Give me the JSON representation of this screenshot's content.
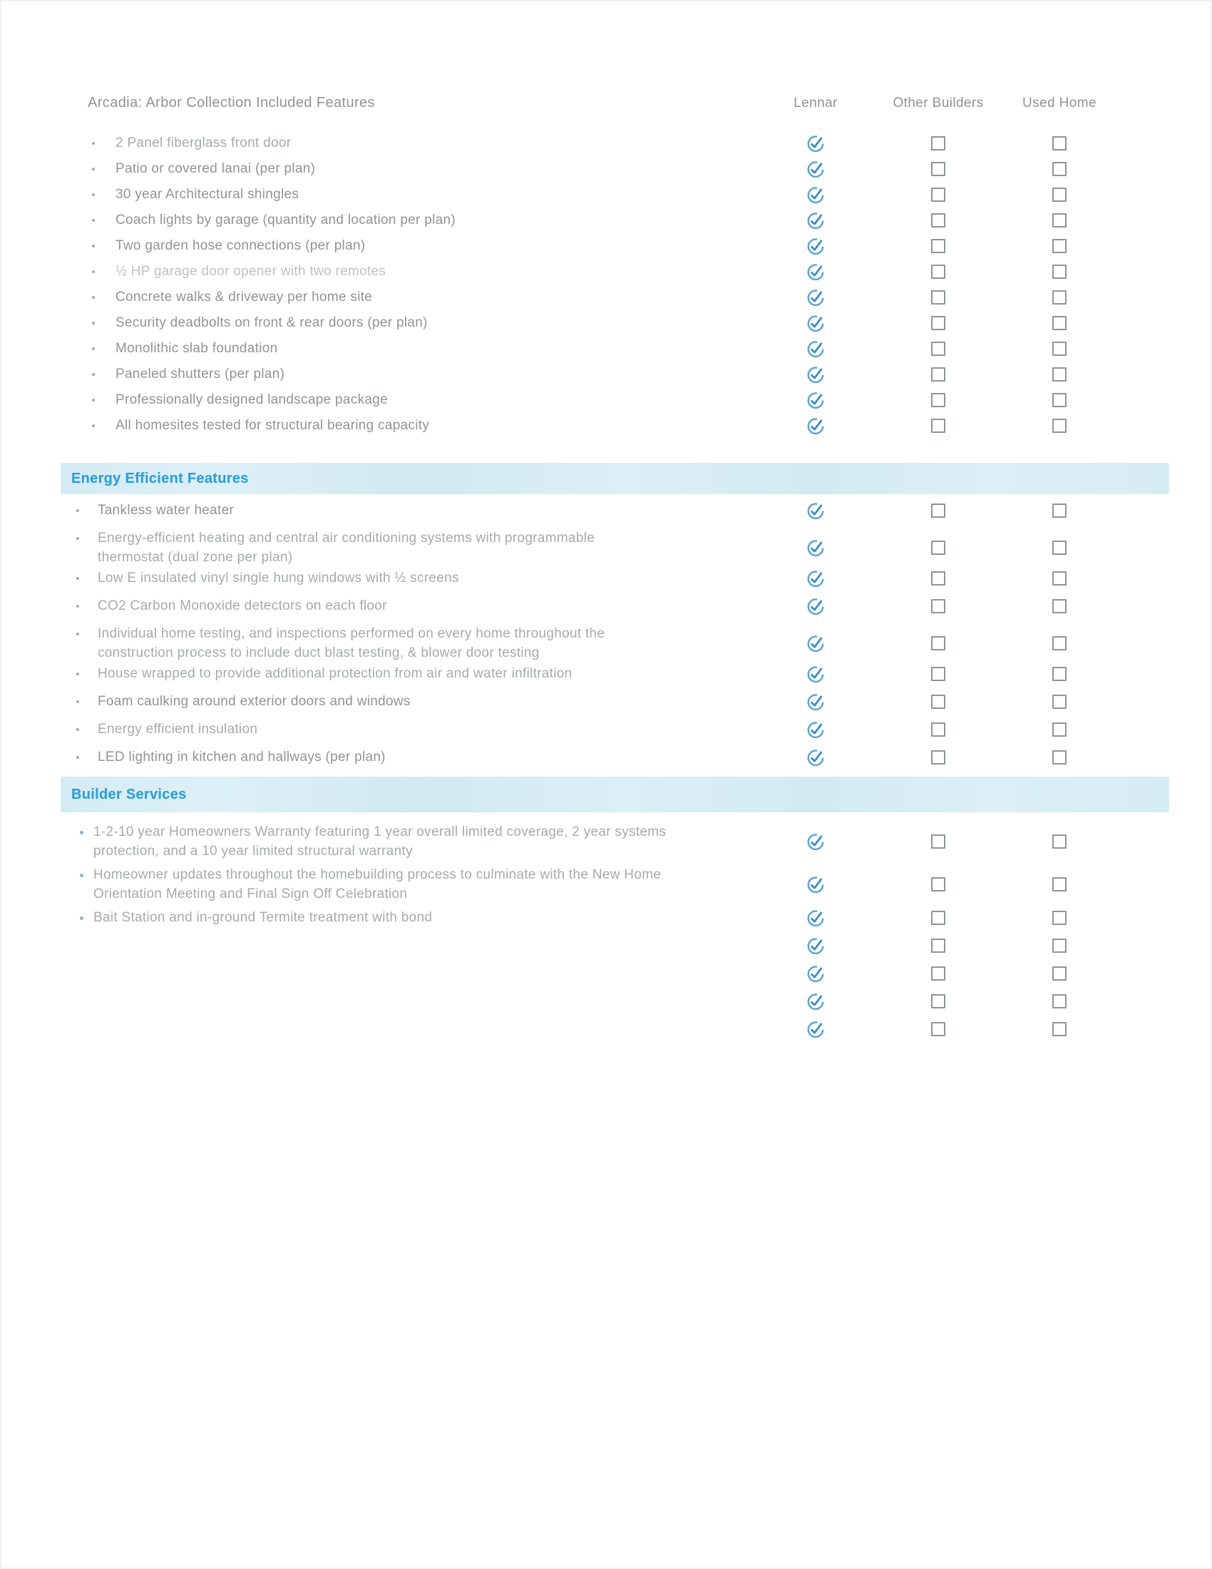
{
  "header": {
    "title": "Arcadia: Arbor Collection Included Features",
    "columns": [
      {
        "label": "Lennar"
      },
      {
        "label": "Other Builders"
      },
      {
        "label": "Used Home"
      }
    ]
  },
  "colors": {
    "accent_blue": "#2c9fd6",
    "band_background": "#d8edf5",
    "check_circle": "#5aa5d0",
    "check_mark": "#3c8ec0",
    "checkbox_border": "#8f9494",
    "text_normal": "#8f9594",
    "text_light": "#a5abaa",
    "text_faded": "#bdc2c0",
    "bullet_gray": "#a4a9a8",
    "bullet_blue": "#85b5d6"
  },
  "icons": {
    "lennar_check": "circle-check-icon",
    "empty_box": "empty-checkbox"
  },
  "sections": [
    {
      "id": "included-features",
      "title": "",
      "items": [
        {
          "text": "2 Panel fiberglass front door",
          "tone": "light",
          "lennar": true,
          "other_builders": false,
          "used_home": false
        },
        {
          "text": "Patio or covered lanai (per plan)",
          "tone": "normal",
          "lennar": true,
          "other_builders": false,
          "used_home": false
        },
        {
          "text": "30 year Architectural shingles",
          "tone": "normal",
          "lennar": true,
          "other_builders": false,
          "used_home": false
        },
        {
          "text": "Coach lights by garage (quantity and location per plan)",
          "tone": "normal",
          "lennar": true,
          "other_builders": false,
          "used_home": false
        },
        {
          "text": "Two garden hose connections (per plan)",
          "tone": "normal",
          "lennar": true,
          "other_builders": false,
          "used_home": false
        },
        {
          "text": "½ HP garage door opener with two remotes",
          "tone": "faded",
          "lennar": true,
          "other_builders": false,
          "used_home": false
        },
        {
          "text": "Concrete walks & driveway per home site",
          "tone": "normal",
          "lennar": true,
          "other_builders": false,
          "used_home": false
        },
        {
          "text": "Security deadbolts on front & rear doors (per plan)",
          "tone": "normal",
          "lennar": true,
          "other_builders": false,
          "used_home": false
        },
        {
          "text": "Monolithic slab foundation",
          "tone": "normal",
          "lennar": true,
          "other_builders": false,
          "used_home": false
        },
        {
          "text": "Paneled shutters (per plan)",
          "tone": "normal",
          "lennar": true,
          "other_builders": false,
          "used_home": false
        },
        {
          "text": "Professionally designed landscape package",
          "tone": "normal",
          "lennar": true,
          "other_builders": false,
          "used_home": false
        },
        {
          "text": "All homesites tested for structural bearing capacity",
          "tone": "normal",
          "lennar": true,
          "other_builders": false,
          "used_home": false
        }
      ]
    },
    {
      "id": "energy-efficient-features",
      "title": "Energy Efficient Features",
      "items": [
        {
          "text": "Tankless water heater",
          "tone": "normal",
          "lennar": true,
          "other_builders": false,
          "used_home": false
        },
        {
          "text": "Energy-efficient heating and central air conditioning systems with programmable\nthermostat (dual zone per plan)",
          "tone": "light",
          "lennar": true,
          "other_builders": false,
          "used_home": false
        },
        {
          "text": "Low E insulated vinyl single hung windows with ½ screens",
          "tone": "light",
          "lennar": true,
          "other_builders": false,
          "used_home": false
        },
        {
          "text": "CO2 Carbon Monoxide detectors on each floor",
          "tone": "light",
          "lennar": true,
          "other_builders": false,
          "used_home": false
        },
        {
          "text": "Individual home testing, and inspections performed on every home throughout the\nconstruction process to include duct blast testing, & blower door testing",
          "tone": "light",
          "lennar": true,
          "other_builders": false,
          "used_home": false
        },
        {
          "text": "House wrapped to provide additional protection from air and water infiltration",
          "tone": "light",
          "lennar": true,
          "other_builders": false,
          "used_home": false
        },
        {
          "text": "Foam caulking around exterior doors and windows",
          "tone": "normal",
          "lennar": true,
          "other_builders": false,
          "used_home": false
        },
        {
          "text": "Energy efficient insulation",
          "tone": "light",
          "lennar": true,
          "other_builders": false,
          "used_home": false
        },
        {
          "text": "LED lighting in kitchen and hallways (per plan)",
          "tone": "normal",
          "lennar": true,
          "other_builders": false,
          "used_home": false
        }
      ]
    },
    {
      "id": "builder-services",
      "title": "Builder Services",
      "items": [
        {
          "text": "1-2-10 year Homeowners Warranty featuring 1 year overall limited coverage, 2 year systems\nprotection, and a 10 year limited structural warranty",
          "tone": "light",
          "lennar": true,
          "other_builders": false,
          "used_home": false
        },
        {
          "text": "Homeowner updates throughout the homebuilding process to culminate with the New Home\nOrientation Meeting and Final Sign Off Celebration",
          "tone": "light",
          "lennar": true,
          "other_builders": false,
          "used_home": false
        },
        {
          "text": "Bait Station and in-ground Termite treatment with bond",
          "tone": "light",
          "lennar": true,
          "other_builders": false,
          "used_home": false
        },
        {
          "text": "",
          "tone": "normal",
          "lennar": true,
          "other_builders": false,
          "used_home": false
        },
        {
          "text": "",
          "tone": "normal",
          "lennar": true,
          "other_builders": false,
          "used_home": false
        },
        {
          "text": "",
          "tone": "normal",
          "lennar": true,
          "other_builders": false,
          "used_home": false
        },
        {
          "text": "",
          "tone": "normal",
          "lennar": true,
          "other_builders": false,
          "used_home": false
        }
      ]
    }
  ]
}
